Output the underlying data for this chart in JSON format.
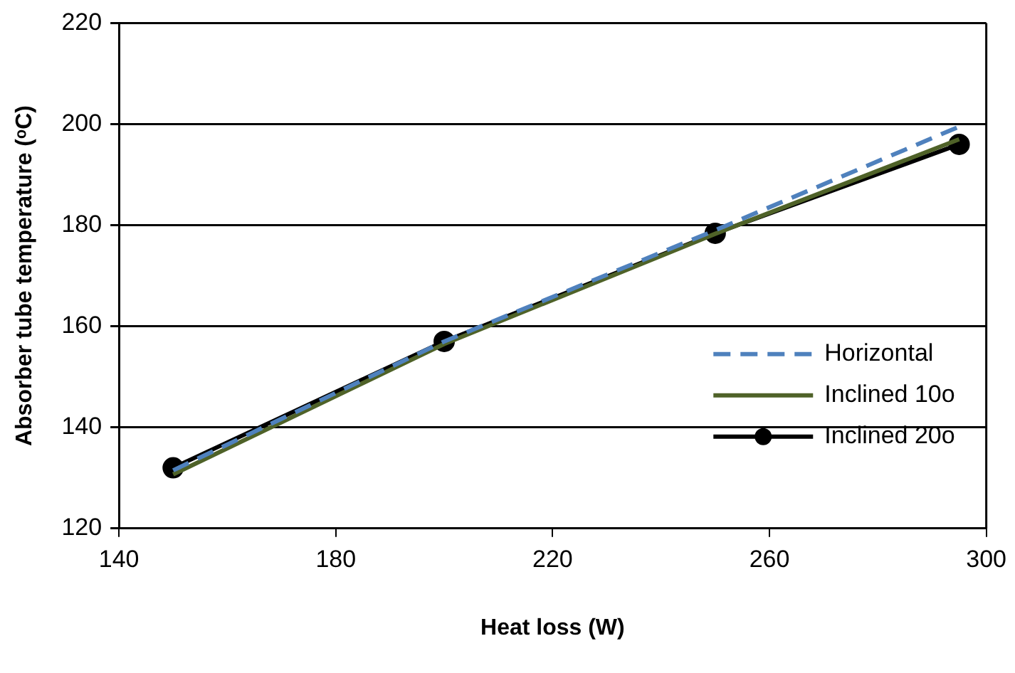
{
  "chart_data": {
    "type": "line",
    "xlabel": "Heat loss (W)",
    "ylabel": "Absorber tube temperature (ᵒC)",
    "xlim": [
      140,
      300
    ],
    "xticks": [
      140,
      180,
      220,
      260,
      300
    ],
    "ylim": [
      120,
      220
    ],
    "yticks": [
      120,
      140,
      160,
      180,
      200,
      220
    ],
    "grid": "y",
    "legend": "bottom right",
    "series": [
      {
        "name": "Horizontal",
        "color": "#4f81bd",
        "line_style": "dashed",
        "marker": "none",
        "x": [
          150,
          200,
          250,
          295
        ],
        "values": [
          131.5,
          157,
          179,
          199.5
        ]
      },
      {
        "name": "Inclined 10o",
        "color": "#4f6228",
        "line_style": "solid",
        "marker": "none",
        "x": [
          150,
          200,
          250,
          295
        ],
        "values": [
          130.7,
          156.5,
          178.3,
          197
        ]
      },
      {
        "name": "Inclined 20o",
        "color": "#000000",
        "line_style": "solid",
        "marker": "circle",
        "x": [
          150,
          200,
          250,
          295
        ],
        "values": [
          132,
          157,
          178.4,
          196
        ]
      }
    ]
  }
}
